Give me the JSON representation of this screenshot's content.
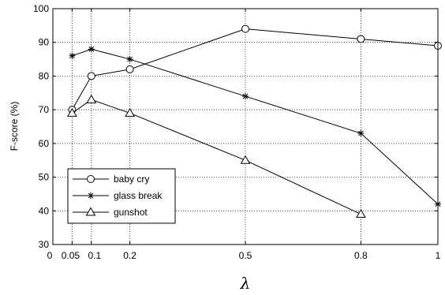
{
  "chart_data": {
    "type": "line",
    "title": "",
    "xlabel": "λ",
    "ylabel": "F-score (%)",
    "xlim": [
      0,
      1
    ],
    "ylim": [
      30,
      100
    ],
    "xticks": [
      0,
      0.05,
      0.1,
      0.2,
      0.5,
      0.8,
      1
    ],
    "xtick_labels": [
      "0",
      "0.05",
      "0.1",
      "0.2",
      "0.5",
      "0.8",
      "1"
    ],
    "yticks": [
      30,
      40,
      50,
      60,
      70,
      80,
      90,
      100
    ],
    "grid": "vertical lines at x ticks",
    "legend_position": "bottom-left",
    "series": [
      {
        "name": "baby cry",
        "marker": "circle",
        "x": [
          0.05,
          0.1,
          0.2,
          0.5,
          0.8,
          1
        ],
        "y": [
          70,
          80,
          82,
          94,
          91,
          89
        ]
      },
      {
        "name": "glass break",
        "marker": "star",
        "x": [
          0.05,
          0.1,
          0.2,
          0.5,
          0.8,
          1
        ],
        "y": [
          86,
          88,
          85,
          74,
          63,
          42
        ]
      },
      {
        "name": "gunshot",
        "marker": "triangle",
        "x": [
          0.05,
          0.1,
          0.2,
          0.5,
          0.8
        ],
        "y": [
          69,
          73,
          69,
          55,
          39
        ]
      }
    ],
    "colors": {
      "line": "#000000",
      "background": "#ffffff"
    }
  }
}
